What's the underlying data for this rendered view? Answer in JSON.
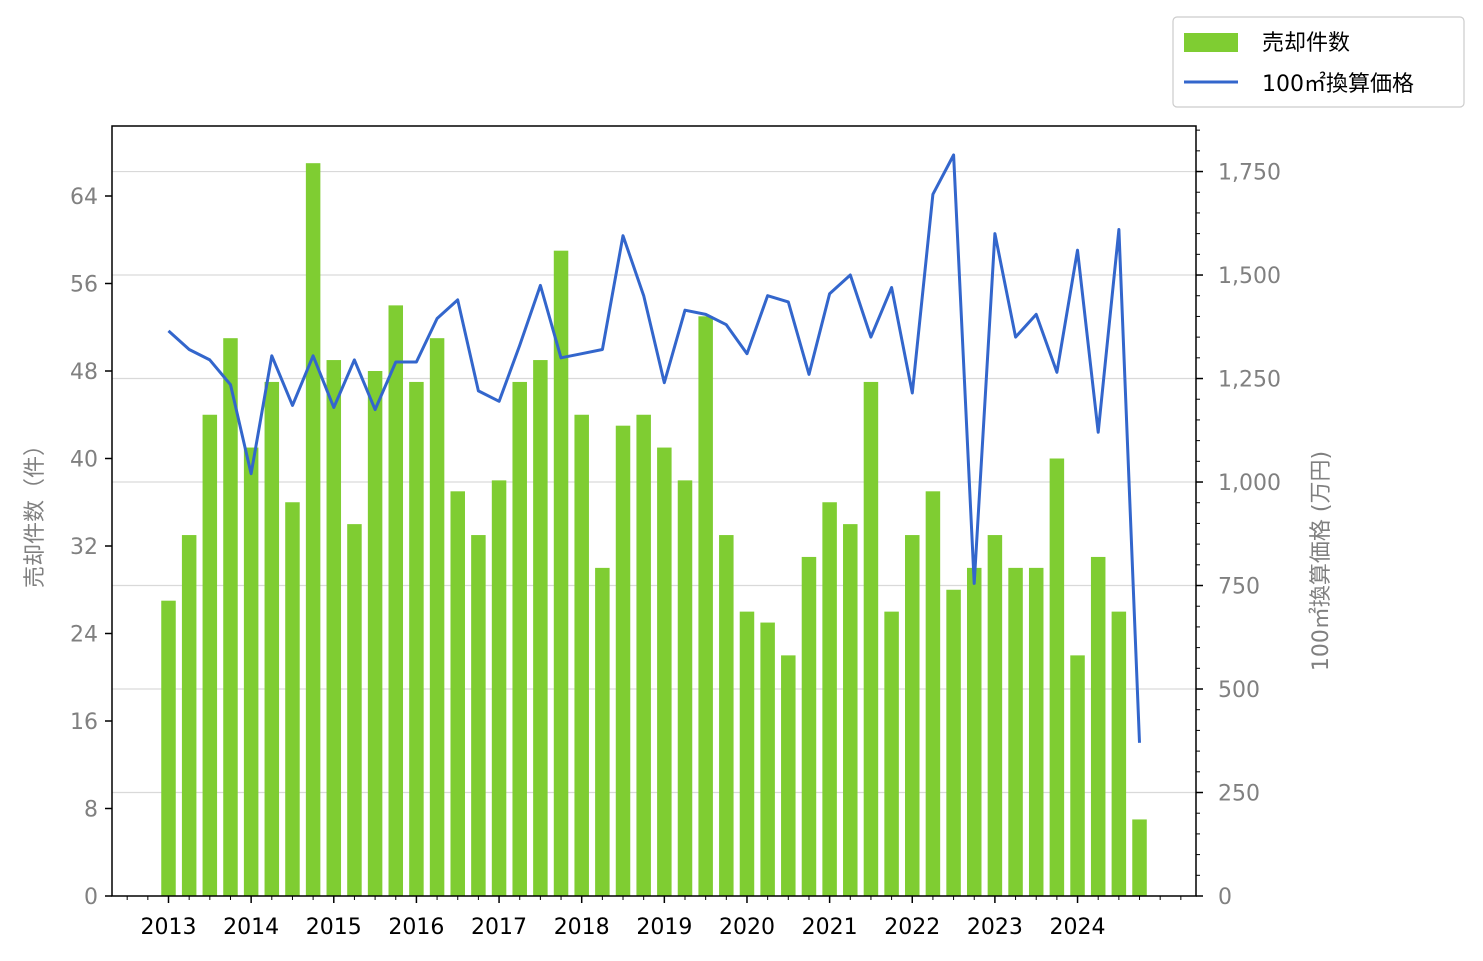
{
  "chart_data": {
    "type": "bar+line",
    "legend_position": "top-right",
    "grid": true,
    "x": [
      "2013-01",
      "2013-04",
      "2013-07",
      "2013-10",
      "2014-01",
      "2014-04",
      "2014-07",
      "2014-10",
      "2015-01",
      "2015-04",
      "2015-07",
      "2015-10",
      "2016-01",
      "2016-04",
      "2016-07",
      "2016-10",
      "2017-01",
      "2017-04",
      "2017-07",
      "2017-10",
      "2018-01",
      "2018-04",
      "2018-07",
      "2018-10",
      "2019-01",
      "2019-04",
      "2019-07",
      "2019-10",
      "2020-01",
      "2020-04",
      "2020-07",
      "2020-10",
      "2021-01",
      "2021-04",
      "2021-07",
      "2021-10",
      "2022-01",
      "2022-04",
      "2022-07",
      "2022-10",
      "2023-01",
      "2023-04",
      "2023-07",
      "2023-10",
      "2024-01",
      "2024-04",
      "2024-07",
      "2024-10"
    ],
    "x_tick_labels": [
      "2013",
      "2014",
      "2015",
      "2016",
      "2017",
      "2018",
      "2019",
      "2020",
      "2021",
      "2022",
      "2023",
      "2024"
    ],
    "series": [
      {
        "name": "売却件数",
        "type": "bar",
        "axis": "left",
        "color": "#7fcd32",
        "values": [
          27,
          33,
          44,
          51,
          41,
          47,
          36,
          67,
          49,
          34,
          48,
          54,
          47,
          51,
          37,
          33,
          38,
          47,
          49,
          59,
          44,
          30,
          43,
          44,
          41,
          38,
          53,
          33,
          26,
          25,
          22,
          31,
          36,
          34,
          47,
          26,
          33,
          37,
          28,
          30,
          33,
          30,
          30,
          40,
          22,
          31,
          26,
          7
        ]
      },
      {
        "name": "100㎡換算価格",
        "type": "line",
        "axis": "right",
        "color": "#3366cc",
        "values": [
          1365,
          1320,
          1295,
          1235,
          1020,
          1305,
          1185,
          1305,
          1180,
          1295,
          1175,
          1290,
          1290,
          1395,
          1440,
          1220,
          1195,
          1330,
          1475,
          1300,
          1310,
          1320,
          1595,
          1450,
          1240,
          1415,
          1405,
          1380,
          1310,
          1450,
          1435,
          1260,
          1455,
          1500,
          1350,
          1470,
          1215,
          1695,
          1790,
          755,
          1600,
          1350,
          1405,
          1265,
          1560,
          1120,
          1610,
          370
        ]
      }
    ],
    "y_left": {
      "label": "売却件数（件）",
      "ticks": [
        0,
        8,
        16,
        24,
        32,
        40,
        48,
        56,
        64
      ],
      "lim": [
        0,
        70.4
      ]
    },
    "y_right": {
      "label": "100㎡換算価格 (万円)",
      "ticks": [
        0,
        250,
        500,
        750,
        1000,
        1250,
        1500,
        1750
      ],
      "tick_labels": [
        "0",
        "250",
        "500",
        "750",
        "1,000",
        "1,250",
        "1,500",
        "1,750"
      ],
      "lim": [
        0,
        1860
      ]
    }
  }
}
